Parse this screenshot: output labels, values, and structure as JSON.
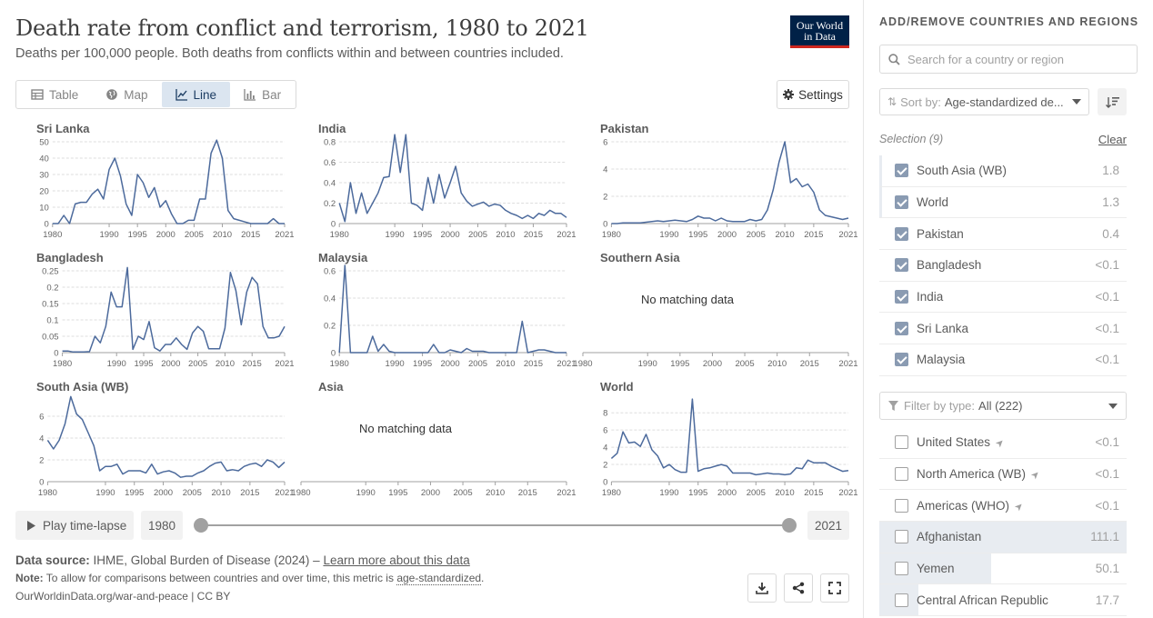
{
  "header": {
    "title": "Death rate from conflict and terrorism, 1980 to 2021",
    "subtitle": "Deaths per 100,000 people. Both deaths from conflicts within and between countries included.",
    "logo_line1": "Our World",
    "logo_line2": "in Data"
  },
  "tabs": [
    {
      "label": "Table",
      "icon": "table-icon",
      "active": false
    },
    {
      "label": "Map",
      "icon": "globe-icon",
      "active": false
    },
    {
      "label": "Line",
      "icon": "line-chart-icon",
      "active": true
    },
    {
      "label": "Bar",
      "icon": "bar-chart-icon",
      "active": false
    }
  ],
  "settings_label": "Settings",
  "no_data_text": "No matching data",
  "timeline": {
    "play_label": "Play time-lapse",
    "start_year": "1980",
    "end_year": "2021"
  },
  "footer": {
    "source_label": "Data source:",
    "source_text": "IHME, Global Burden of Disease (2024) –",
    "learn_more": "Learn more about this data",
    "note_label": "Note:",
    "note_text": "To allow for comparisons between countries and over time, this metric is",
    "note_link": "age-standardized",
    "note_end": ".",
    "url": "OurWorldinData.org/war-and-peace | CC BY"
  },
  "sidebar": {
    "heading": "ADD/REMOVE COUNTRIES AND REGIONS",
    "search_placeholder": "Search for a country or region",
    "sort_label": "Sort by:",
    "sort_value": "Age-standardized de...",
    "selection_label": "Selection (9)",
    "clear_label": "Clear",
    "selected": [
      {
        "name": "South Asia (WB)",
        "value": "1.8",
        "edge": true
      },
      {
        "name": "World",
        "value": "1.3",
        "edge": true
      },
      {
        "name": "Pakistan",
        "value": "0.4",
        "edge": false
      },
      {
        "name": "Bangladesh",
        "value": "<0.1",
        "edge": false
      },
      {
        "name": "India",
        "value": "<0.1",
        "edge": false
      },
      {
        "name": "Sri Lanka",
        "value": "<0.1",
        "edge": false
      },
      {
        "name": "Malaysia",
        "value": "<0.1",
        "edge": false
      }
    ],
    "filter_label": "Filter by type:",
    "filter_value": "All (222)",
    "others": [
      {
        "name": "United States",
        "value": "<0.1",
        "nav": true,
        "bar": 0
      },
      {
        "name": "North America (WB)",
        "value": "<0.1",
        "nav": true,
        "bar": 0
      },
      {
        "name": "Americas (WHO)",
        "value": "<0.1",
        "nav": true,
        "bar": 0
      },
      {
        "name": "Afghanistan",
        "value": "111.1",
        "nav": false,
        "bar": 1.0
      },
      {
        "name": "Yemen",
        "value": "50.1",
        "nav": false,
        "bar": 0.451
      },
      {
        "name": "Central African Republic",
        "value": "17.7",
        "nav": false,
        "bar": 0.159
      }
    ]
  },
  "colors": {
    "line": "#4c6a9c",
    "axis": "#a1a1a1",
    "grid": "#dddddd",
    "accent_bg": "#dbe5f0",
    "logo_bg": "#002147",
    "logo_red": "#ce261e"
  },
  "chart_data": {
    "type": "line",
    "x_range": [
      1980,
      2021
    ],
    "x_ticks": [
      1980,
      1990,
      1995,
      2000,
      2005,
      2010,
      2015,
      2021
    ],
    "panels": [
      {
        "name": "Sri Lanka",
        "yticks": [
          "0",
          "10",
          "20",
          "30",
          "40",
          "50"
        ],
        "ymax": 50,
        "x": [
          1980,
          1981,
          1982,
          1983,
          1984,
          1985,
          1986,
          1987,
          1988,
          1989,
          1990,
          1991,
          1992,
          1993,
          1994,
          1995,
          1996,
          1997,
          1998,
          1999,
          2000,
          2001,
          2002,
          2003,
          2004,
          2005,
          2006,
          2007,
          2008,
          2009,
          2010,
          2011,
          2012,
          2013,
          2014,
          2015,
          2016,
          2017,
          2018,
          2019,
          2020,
          2021
        ],
        "y": [
          0,
          0,
          5,
          0,
          12,
          13,
          13,
          18,
          21,
          15,
          33,
          40,
          29,
          12,
          5,
          30,
          25,
          16,
          22,
          10,
          14,
          6,
          0,
          0,
          2,
          2,
          15,
          15,
          43,
          51,
          40,
          8,
          3,
          2,
          1,
          0,
          0,
          0,
          0,
          3,
          0,
          0
        ]
      },
      {
        "name": "India",
        "yticks": [
          "0",
          "0.2",
          "0.4",
          "0.6",
          "0.8"
        ],
        "ymax": 0.8,
        "x": [
          1980,
          1981,
          1982,
          1983,
          1984,
          1985,
          1986,
          1987,
          1988,
          1989,
          1990,
          1991,
          1992,
          1993,
          1994,
          1995,
          1996,
          1997,
          1998,
          1999,
          2000,
          2001,
          2002,
          2003,
          2004,
          2005,
          2006,
          2007,
          2008,
          2009,
          2010,
          2011,
          2012,
          2013,
          2014,
          2015,
          2016,
          2017,
          2018,
          2019,
          2020,
          2021
        ],
        "y": [
          0.2,
          0.02,
          0.4,
          0.1,
          0.3,
          0.1,
          0.2,
          0.3,
          0.45,
          0.46,
          0.87,
          0.5,
          0.87,
          0.2,
          0.18,
          0.13,
          0.45,
          0.2,
          0.48,
          0.25,
          0.4,
          0.56,
          0.3,
          0.22,
          0.17,
          0.19,
          0.21,
          0.17,
          0.19,
          0.18,
          0.13,
          0.1,
          0.08,
          0.05,
          0.08,
          0.05,
          0.1,
          0.08,
          0.13,
          0.1,
          0.1,
          0.06
        ]
      },
      {
        "name": "Pakistan",
        "yticks": [
          "0",
          "2",
          "4",
          "6"
        ],
        "ymax": 6,
        "x": [
          1980,
          1981,
          1982,
          1983,
          1984,
          1985,
          1986,
          1987,
          1988,
          1989,
          1990,
          1991,
          1992,
          1993,
          1994,
          1995,
          1996,
          1997,
          1998,
          1999,
          2000,
          2001,
          2002,
          2003,
          2004,
          2005,
          2006,
          2007,
          2008,
          2009,
          2010,
          2011,
          2012,
          2013,
          2014,
          2015,
          2016,
          2017,
          2018,
          2019,
          2020,
          2021
        ],
        "y": [
          0,
          0,
          0.05,
          0.05,
          0.05,
          0.05,
          0.1,
          0.15,
          0.2,
          0.15,
          0.2,
          0.25,
          0.2,
          0.15,
          0.3,
          0.55,
          0.4,
          0.4,
          0.2,
          0.4,
          0.2,
          0.15,
          0.15,
          0.15,
          0.3,
          0.2,
          0.3,
          1.0,
          2.5,
          4.5,
          6.0,
          3.0,
          3.3,
          2.7,
          2.9,
          2.3,
          1.0,
          0.6,
          0.5,
          0.4,
          0.3,
          0.4
        ]
      },
      {
        "name": "Bangladesh",
        "yticks": [
          "0",
          "0.05",
          "0.1",
          "0.15",
          "0.2",
          "0.25"
        ],
        "ymax": 0.25,
        "x": [
          1980,
          1981,
          1982,
          1983,
          1984,
          1985,
          1986,
          1987,
          1988,
          1989,
          1990,
          1991,
          1992,
          1993,
          1994,
          1995,
          1996,
          1997,
          1998,
          1999,
          2000,
          2001,
          2002,
          2003,
          2004,
          2005,
          2006,
          2007,
          2008,
          2009,
          2010,
          2011,
          2012,
          2013,
          2014,
          2015,
          2016,
          2017,
          2018,
          2019,
          2020,
          2021
        ],
        "y": [
          0.005,
          0.005,
          0.002,
          0.002,
          0.002,
          0.003,
          0.05,
          0.03,
          0.08,
          0.185,
          0.14,
          0.14,
          0.26,
          0.01,
          0.05,
          0.04,
          0.095,
          0.015,
          0.005,
          0.025,
          0.025,
          0.045,
          0.025,
          0.01,
          0.06,
          0.08,
          0.065,
          0.012,
          0.012,
          0.012,
          0.075,
          0.245,
          0.19,
          0.085,
          0.185,
          0.23,
          0.21,
          0.08,
          0.045,
          0.045,
          0.05,
          0.08
        ]
      },
      {
        "name": "Malaysia",
        "yticks": [
          "0",
          "0.2",
          "0.4",
          "0.6"
        ],
        "ymax": 0.6,
        "x": [
          1980,
          1981,
          1982,
          1983,
          1984,
          1985,
          1986,
          1987,
          1988,
          1989,
          1990,
          1991,
          1992,
          1993,
          1994,
          1995,
          1996,
          1997,
          1998,
          1999,
          2000,
          2001,
          2002,
          2003,
          2004,
          2005,
          2006,
          2007,
          2008,
          2009,
          2010,
          2011,
          2012,
          2013,
          2014,
          2015,
          2016,
          2017,
          2018,
          2019,
          2020,
          2021
        ],
        "y": [
          0,
          0.64,
          0,
          0,
          0,
          0,
          0.12,
          0.01,
          0.06,
          0.01,
          0,
          0,
          0,
          0,
          0,
          0,
          0,
          0.06,
          0,
          0,
          0.02,
          0.01,
          0,
          0.03,
          0.01,
          0.01,
          0.01,
          0,
          0,
          0,
          0,
          0,
          0,
          0.23,
          0,
          0.01,
          0.02,
          0.02,
          0.01,
          0,
          0,
          0
        ]
      },
      {
        "name": "Southern Asia",
        "no_data": true
      },
      {
        "name": "South Asia (WB)",
        "yticks": [
          "0",
          "2",
          "4",
          "6"
        ],
        "ymax": 7.5,
        "x": [
          1980,
          1981,
          1982,
          1983,
          1984,
          1985,
          1986,
          1987,
          1988,
          1989,
          1990,
          1991,
          1992,
          1993,
          1994,
          1995,
          1996,
          1997,
          1998,
          1999,
          2000,
          2001,
          2002,
          2003,
          2004,
          2005,
          2006,
          2007,
          2008,
          2009,
          2010,
          2011,
          2012,
          2013,
          2014,
          2015,
          2016,
          2017,
          2018,
          2019,
          2020,
          2021
        ],
        "y": [
          3.8,
          3.0,
          3.8,
          5.3,
          7.8,
          6.2,
          5.7,
          4.5,
          3.3,
          1.0,
          1.4,
          1.4,
          1.6,
          0.7,
          1.0,
          1.0,
          1.0,
          0.8,
          1.6,
          0.7,
          0.9,
          1.0,
          0.8,
          0.4,
          0.5,
          0.5,
          0.8,
          1.0,
          1.4,
          1.7,
          1.8,
          1.0,
          1.1,
          1.0,
          1.4,
          1.6,
          1.7,
          1.4,
          2.0,
          1.8,
          1.3,
          1.8
        ]
      },
      {
        "name": "Asia",
        "no_data": true
      },
      {
        "name": "World",
        "yticks": [
          "0",
          "2",
          "4",
          "6",
          "8"
        ],
        "ymax": 9.5,
        "x": [
          1980,
          1981,
          1982,
          1983,
          1984,
          1985,
          1986,
          1987,
          1988,
          1989,
          1990,
          1991,
          1992,
          1993,
          1994,
          1995,
          1996,
          1997,
          1998,
          1999,
          2000,
          2001,
          2002,
          2003,
          2004,
          2005,
          2006,
          2007,
          2008,
          2009,
          2010,
          2011,
          2012,
          2013,
          2014,
          2015,
          2016,
          2017,
          2018,
          2019,
          2020,
          2021
        ],
        "y": [
          2.7,
          3.3,
          5.8,
          4.5,
          4.6,
          4.1,
          5.5,
          3.7,
          3.0,
          1.6,
          2.0,
          1.4,
          1.1,
          1.1,
          9.6,
          1.2,
          1.5,
          1.6,
          1.8,
          2.0,
          1.8,
          1.0,
          1.0,
          1.0,
          1.0,
          0.8,
          0.9,
          1.0,
          0.9,
          0.9,
          0.8,
          0.9,
          1.6,
          1.5,
          2.5,
          2.2,
          2.2,
          2.2,
          1.8,
          1.5,
          1.2,
          1.3
        ]
      }
    ]
  }
}
